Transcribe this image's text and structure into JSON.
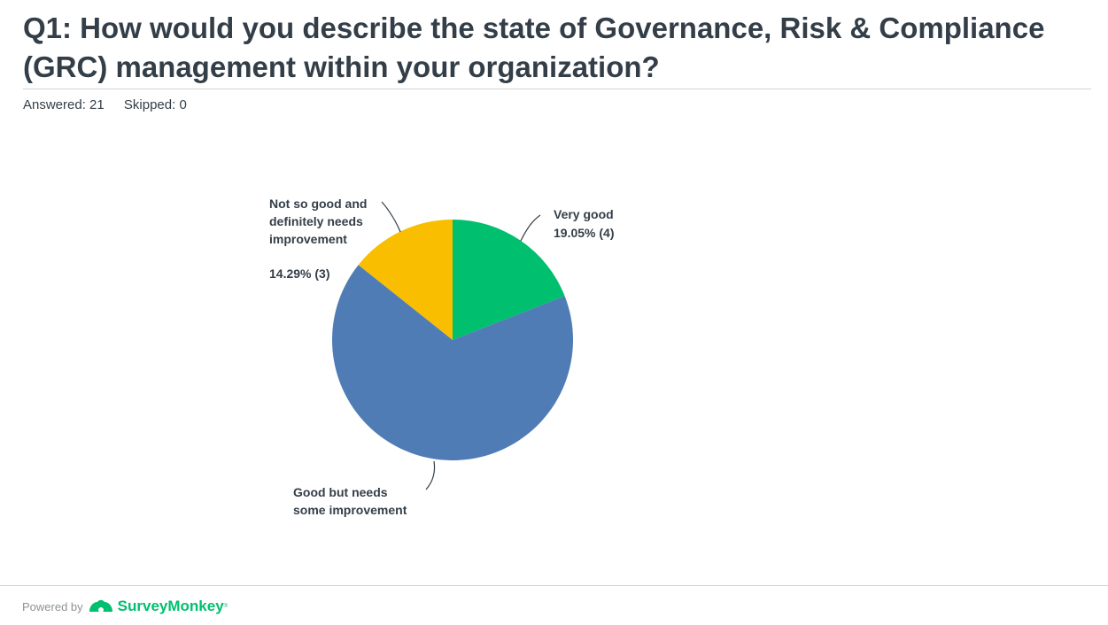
{
  "question": {
    "title": "Q1: How would you describe the state of Governance, Risk & Compliance (GRC) management within your organization?"
  },
  "stats": {
    "answered": "Answered: 21",
    "skipped": "Skipped: 0"
  },
  "chart_data": {
    "type": "pie",
    "slices": [
      {
        "label": "Very good",
        "value_label": "19.05% (4)",
        "percent": 19.05,
        "count": 4,
        "color": "#00bf6f"
      },
      {
        "label": "Good but needs some improvement",
        "value_label": "",
        "percent": 66.67,
        "count": 14,
        "color": "#507cb6"
      },
      {
        "label": "Not so good and definitely needs improvement",
        "value_label": "14.29% (3)",
        "percent": 14.29,
        "count": 3,
        "color": "#f9be00"
      }
    ],
    "start": "top",
    "direction": "clockwise"
  },
  "footer": {
    "powered_by": "Powered by",
    "brand": "SurveyMonkey",
    "trademark": "®"
  },
  "colors": {
    "text": "#333e48",
    "rule": "#d0d2d3",
    "brand": "#00bf6f"
  }
}
